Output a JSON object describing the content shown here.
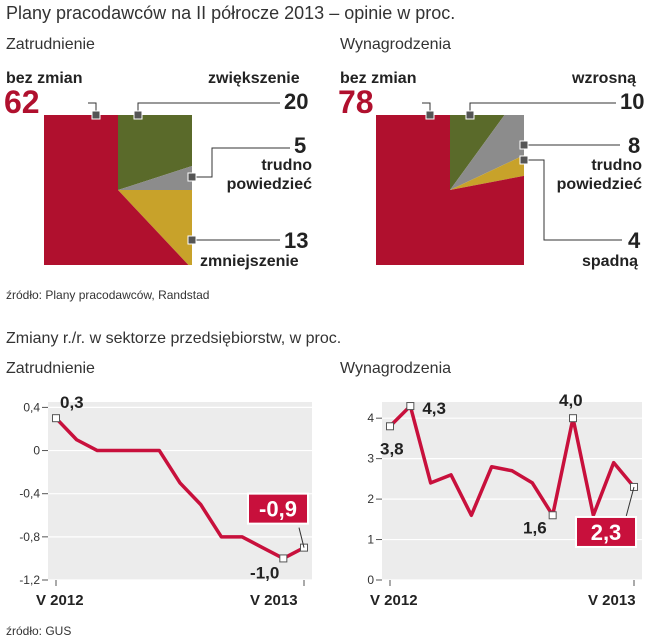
{
  "title": "Plany pracodawców na II półrocze 2013 – opinie w proc.",
  "source_top": "źródło: Plany pracodawców, Randstad",
  "subtitle2": "Zmiany r./r. w sektorze przedsiębiorstw, w proc.",
  "source_bottom": "źródło: GUS",
  "colors": {
    "red": "#b0102e",
    "olive": "#5a6a2a",
    "gray": "#8c8c8c",
    "gold": "#c8a22a",
    "line": "#c8103c"
  },
  "chart_data": [
    {
      "type": "pie",
      "title": "Zatrudnienie",
      "slices": [
        {
          "label": "bez zmian",
          "value": 62
        },
        {
          "label": "zwiększenie",
          "value": 20
        },
        {
          "label": "trudno powiedzieć",
          "value": 5
        },
        {
          "label": "zmniejszenie",
          "value": 13
        }
      ]
    },
    {
      "type": "pie",
      "title": "Wynagrodzenia",
      "slices": [
        {
          "label": "bez zmian",
          "value": 78
        },
        {
          "label": "wzrosną",
          "value": 10
        },
        {
          "label": "trudno powiedzieć",
          "value": 8
        },
        {
          "label": "spadną",
          "value": 4
        }
      ]
    },
    {
      "type": "line",
      "title": "Zatrudnienie",
      "xlabel_start": "V 2012",
      "xlabel_end": "V 2013",
      "ylim": [
        -1.2,
        0.45
      ],
      "yticks": [
        "0,4",
        "0",
        "-0,4",
        "-0,8",
        "-1,2"
      ],
      "values": [
        0.3,
        0.1,
        0.0,
        0.0,
        0.0,
        0.0,
        -0.3,
        -0.5,
        -0.8,
        -0.8,
        -0.9,
        -1.0,
        -0.9
      ],
      "labels": {
        "first": "0,3",
        "min": "-1,0",
        "last": "-0,9"
      }
    },
    {
      "type": "line",
      "title": "Wynagrodzenia",
      "xlabel_start": "V 2012",
      "xlabel_end": "V 2013",
      "ylim": [
        0,
        4.4
      ],
      "yticks": [
        "4",
        "3",
        "2",
        "1",
        "0"
      ],
      "values": [
        3.8,
        4.3,
        2.4,
        2.6,
        1.6,
        2.8,
        2.7,
        2.4,
        1.6,
        4.0,
        1.6,
        2.9,
        2.3
      ],
      "labels": {
        "first": "3,8",
        "second": "4,3",
        "min": "1,6",
        "peak": "4,0",
        "last": "2,3"
      }
    }
  ]
}
